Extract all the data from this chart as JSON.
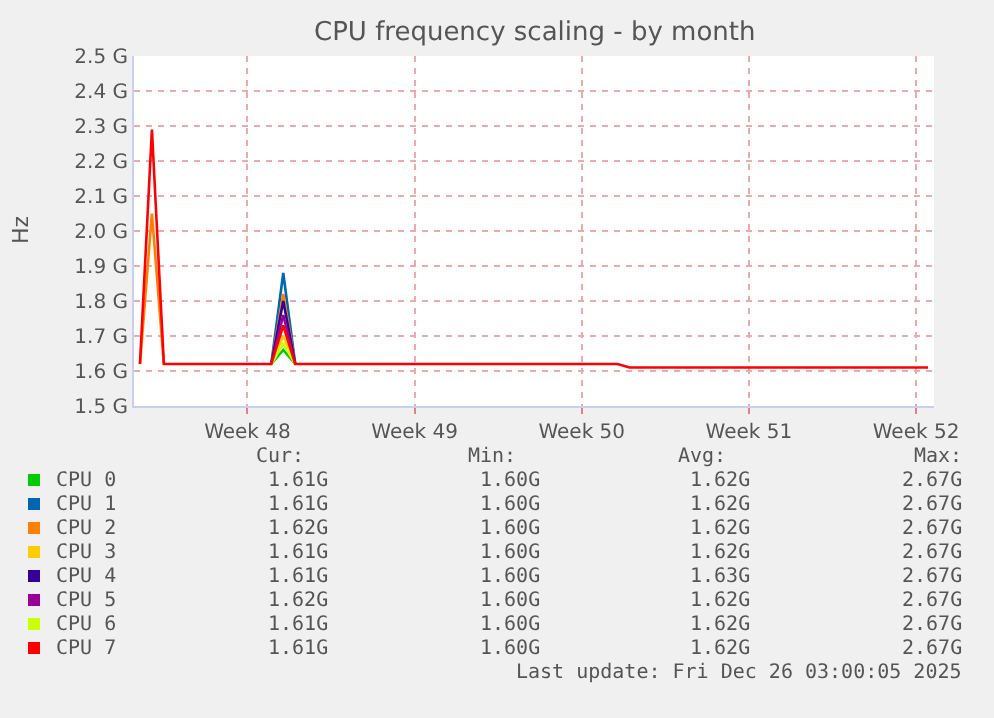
{
  "chart_data": {
    "type": "line",
    "title": "CPU frequency scaling - by month",
    "ylabel": "Hz",
    "categories": [
      null,
      null,
      null,
      null,
      null,
      null,
      null,
      null,
      null,
      "Week 48",
      null,
      null,
      null,
      null,
      null,
      null,
      null,
      null,
      null,
      null,
      null,
      null,
      null,
      "Week 49",
      null,
      null,
      null,
      null,
      null,
      null,
      null,
      null,
      null,
      null,
      null,
      null,
      null,
      "Week 50",
      null,
      null,
      null,
      null,
      null,
      null,
      null,
      null,
      null,
      null,
      null,
      null,
      null,
      "Week 51",
      null,
      null,
      null,
      null,
      null,
      null,
      null,
      null,
      null,
      null,
      null,
      null,
      null,
      "Week 52",
      null
    ],
    "series": [
      {
        "name": "CPU 0",
        "color": "#00cc00",
        "values": [
          null,
          null,
          null,
          null,
          null,
          null,
          null,
          null,
          null,
          null,
          null,
          1.62,
          1.66,
          1.62,
          null,
          null,
          null,
          null,
          null,
          null,
          null,
          null,
          null,
          null,
          null,
          null,
          null,
          null,
          null,
          null,
          null,
          null,
          null,
          null,
          null,
          null,
          null,
          null,
          null,
          null,
          null,
          null,
          null,
          null,
          null,
          null,
          null,
          null,
          null,
          null,
          null,
          null,
          null,
          null,
          null,
          null,
          null,
          null,
          null,
          null,
          null,
          null,
          null,
          null,
          null,
          null,
          null
        ]
      },
      {
        "name": "CPU 1",
        "color": "#0066b3",
        "values": [
          null,
          null,
          null,
          null,
          null,
          null,
          null,
          null,
          null,
          null,
          null,
          1.62,
          1.88,
          1.62,
          null,
          null,
          null,
          null,
          null,
          null,
          null,
          null,
          null,
          null,
          null,
          null,
          null,
          null,
          null,
          null,
          null,
          null,
          null,
          null,
          null,
          null,
          null,
          null,
          null,
          null,
          null,
          null,
          null,
          null,
          null,
          null,
          null,
          null,
          null,
          null,
          null,
          null,
          null,
          null,
          null,
          null,
          null,
          null,
          null,
          null,
          null,
          null,
          null,
          null,
          null,
          null,
          null
        ]
      },
      {
        "name": "CPU 2",
        "color": "#ff8000",
        "values": [
          1.62,
          2.05,
          1.62,
          null,
          null,
          null,
          null,
          null,
          null,
          null,
          null,
          1.62,
          1.82,
          1.62,
          null,
          null,
          null,
          null,
          null,
          null,
          null,
          null,
          null,
          null,
          null,
          null,
          null,
          null,
          null,
          null,
          null,
          null,
          null,
          null,
          null,
          null,
          null,
          null,
          null,
          null,
          null,
          null,
          null,
          null,
          null,
          null,
          null,
          null,
          null,
          null,
          null,
          null,
          null,
          null,
          null,
          null,
          null,
          null,
          null,
          null,
          null,
          null,
          null,
          null,
          null,
          null,
          null
        ]
      },
      {
        "name": "CPU 3",
        "color": "#ffcc00",
        "values": [
          null,
          null,
          null,
          null,
          null,
          null,
          null,
          null,
          null,
          null,
          null,
          1.62,
          1.7,
          1.62,
          null,
          null,
          null,
          null,
          null,
          null,
          null,
          null,
          null,
          null,
          null,
          null,
          null,
          null,
          null,
          null,
          null,
          null,
          null,
          null,
          null,
          null,
          null,
          null,
          null,
          null,
          null,
          null,
          null,
          null,
          null,
          null,
          null,
          null,
          null,
          null,
          null,
          null,
          null,
          null,
          null,
          null,
          null,
          null,
          null,
          null,
          null,
          null,
          null,
          null,
          null,
          null,
          null
        ]
      },
      {
        "name": "CPU 4",
        "color": "#330099",
        "values": [
          null,
          null,
          null,
          null,
          null,
          null,
          null,
          null,
          null,
          null,
          null,
          1.62,
          1.8,
          1.62,
          null,
          null,
          null,
          null,
          null,
          null,
          null,
          null,
          null,
          null,
          null,
          null,
          null,
          null,
          null,
          null,
          null,
          null,
          null,
          null,
          null,
          null,
          null,
          null,
          null,
          null,
          null,
          null,
          null,
          null,
          null,
          null,
          null,
          null,
          null,
          null,
          null,
          null,
          null,
          null,
          null,
          null,
          null,
          null,
          null,
          null,
          null,
          null,
          null,
          null,
          null,
          null,
          null
        ]
      },
      {
        "name": "CPU 5",
        "color": "#990099",
        "values": [
          null,
          null,
          null,
          null,
          null,
          null,
          null,
          null,
          null,
          null,
          null,
          1.62,
          1.76,
          1.62,
          null,
          null,
          null,
          null,
          null,
          null,
          null,
          null,
          null,
          null,
          null,
          null,
          null,
          null,
          null,
          null,
          null,
          null,
          null,
          null,
          null,
          null,
          null,
          null,
          null,
          null,
          null,
          null,
          null,
          null,
          null,
          null,
          null,
          null,
          null,
          null,
          null,
          null,
          null,
          null,
          null,
          null,
          null,
          null,
          null,
          null,
          null,
          null,
          null,
          null,
          null,
          null,
          null
        ]
      },
      {
        "name": "CPU 6",
        "color": "#ccff00",
        "values": [
          null,
          null,
          null,
          null,
          null,
          null,
          null,
          null,
          null,
          null,
          null,
          1.62,
          1.68,
          1.62,
          null,
          null,
          null,
          null,
          null,
          null,
          null,
          null,
          null,
          null,
          null,
          null,
          null,
          null,
          null,
          null,
          null,
          null,
          null,
          null,
          null,
          null,
          null,
          null,
          null,
          null,
          null,
          null,
          null,
          null,
          null,
          null,
          null,
          null,
          null,
          null,
          null,
          null,
          null,
          null,
          null,
          null,
          null,
          null,
          null,
          null,
          null,
          null,
          null,
          null,
          null,
          null,
          null
        ]
      },
      {
        "name": "CPU 7",
        "color": "#ff0000",
        "values": [
          1.62,
          2.29,
          1.62,
          1.62,
          1.62,
          1.62,
          1.62,
          1.62,
          1.62,
          1.62,
          1.62,
          1.62,
          1.73,
          1.62,
          1.62,
          1.62,
          1.62,
          1.62,
          1.62,
          1.62,
          1.62,
          1.62,
          1.62,
          1.62,
          1.62,
          1.62,
          1.62,
          1.62,
          1.62,
          1.62,
          1.62,
          1.62,
          1.62,
          1.62,
          1.62,
          1.62,
          1.62,
          1.62,
          1.62,
          1.62,
          1.62,
          1.61,
          1.61,
          1.61,
          1.61,
          1.61,
          1.61,
          1.61,
          1.61,
          1.61,
          1.61,
          1.61,
          1.61,
          1.61,
          1.61,
          1.61,
          1.61,
          1.61,
          1.61,
          1.61,
          1.61,
          1.61,
          1.61,
          1.61,
          1.61,
          1.61,
          1.61
        ]
      }
    ],
    "ylim": [
      1.5,
      2.5
    ],
    "yticks": [
      {
        "value": 1.5,
        "label": "1.5 G"
      },
      {
        "value": 1.6,
        "label": "1.6 G"
      },
      {
        "value": 1.7,
        "label": "1.7 G"
      },
      {
        "value": 1.8,
        "label": "1.8 G"
      },
      {
        "value": 1.9,
        "label": "1.9 G"
      },
      {
        "value": 2.0,
        "label": "2.0 G"
      },
      {
        "value": 2.1,
        "label": "2.1 G"
      },
      {
        "value": 2.2,
        "label": "2.2 G"
      },
      {
        "value": 2.3,
        "label": "2.3 G"
      },
      {
        "value": 2.4,
        "label": "2.4 G"
      },
      {
        "value": 2.5,
        "label": "2.5 G"
      }
    ],
    "grid": true,
    "legend": "bottom",
    "marker": "none",
    "line_style": "solid",
    "annotations": [
      "Cur:",
      "Min:",
      "Avg:",
      "Max:",
      "1.61G",
      "1.60G",
      "1.62G",
      "2.67G",
      "1.61G",
      "1.60G",
      "1.62G",
      "2.67G",
      "1.62G",
      "1.60G",
      "1.62G",
      "2.67G",
      "1.61G",
      "1.60G",
      "1.62G",
      "2.67G",
      "1.61G",
      "1.60G",
      "1.63G",
      "2.67G",
      "1.62G",
      "1.60G",
      "1.62G",
      "2.67G",
      "1.61G",
      "1.60G",
      "1.62G",
      "2.67G",
      "1.61G",
      "1.60G",
      "1.62G",
      "2.67G",
      "Last update: Fri Dec 26 03:00:05 2025"
    ]
  }
}
